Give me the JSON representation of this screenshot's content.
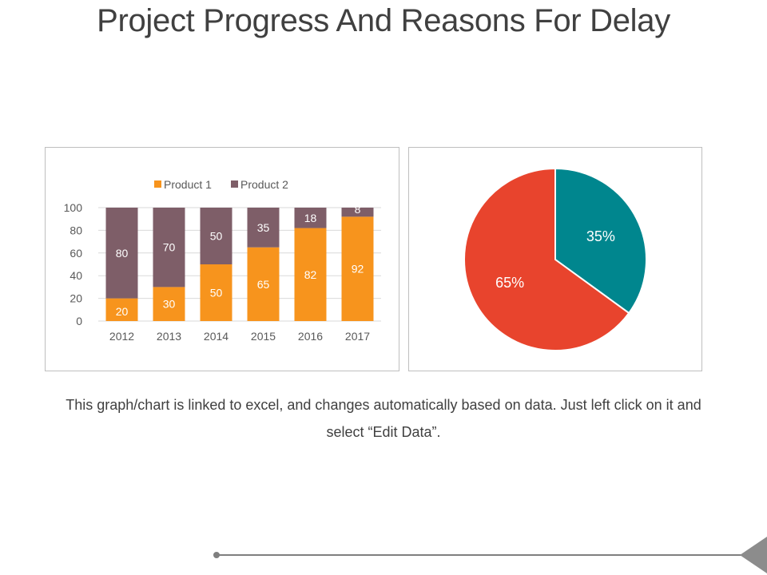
{
  "page": {
    "title": "Project Progress And Reasons For Delay",
    "caption": "This graph/chart is linked to excel, and changes automatically based on data. Just left click on it and select “Edit Data”."
  },
  "colors": {
    "product1": "#F7941D",
    "product2": "#7E5E68",
    "pie_teal": "#00868E",
    "pie_red": "#E8442D",
    "axis": "#595959",
    "grid": "#d9d9d9"
  },
  "chart_data": [
    {
      "type": "bar",
      "stacked": true,
      "categories": [
        "2012",
        "2013",
        "2014",
        "2015",
        "2016",
        "2017"
      ],
      "series": [
        {
          "name": "Product 1",
          "values": [
            20,
            30,
            50,
            65,
            82,
            92
          ]
        },
        {
          "name": "Product 2",
          "values": [
            80,
            70,
            50,
            35,
            18,
            8
          ]
        }
      ],
      "ylim": [
        0,
        100
      ],
      "yticks": [
        "0",
        "20",
        "40",
        "60",
        "80",
        "100"
      ],
      "legend": "top",
      "title": "",
      "xlabel": "",
      "ylabel": ""
    },
    {
      "type": "pie",
      "labels": [
        "35%",
        "65%"
      ],
      "values": [
        35,
        65
      ],
      "title": ""
    }
  ]
}
